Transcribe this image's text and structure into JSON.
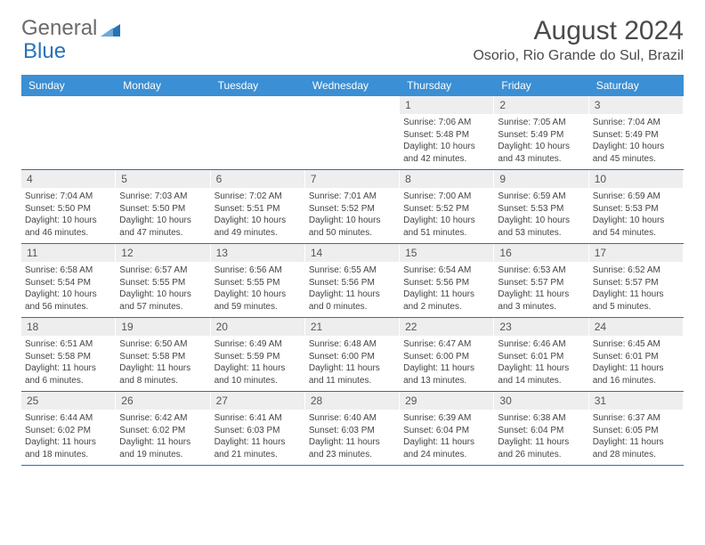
{
  "logo": {
    "part1": "General",
    "part2": "Blue"
  },
  "title": "August 2024",
  "location": "Osorio, Rio Grande do Sul, Brazil",
  "colors": {
    "header_bg": "#3b8fd4",
    "header_text": "#ffffff",
    "daynum_bg": "#eeeeee",
    "week_border": "#2873b8",
    "body_text": "#444444",
    "logo_gray": "#6b6b6b",
    "logo_blue": "#2873b8"
  },
  "day_labels": [
    "Sunday",
    "Monday",
    "Tuesday",
    "Wednesday",
    "Thursday",
    "Friday",
    "Saturday"
  ],
  "weeks": [
    [
      null,
      null,
      null,
      null,
      {
        "n": "1",
        "sunrise": "7:06 AM",
        "sunset": "5:48 PM",
        "daylight": "10 hours and 42 minutes."
      },
      {
        "n": "2",
        "sunrise": "7:05 AM",
        "sunset": "5:49 PM",
        "daylight": "10 hours and 43 minutes."
      },
      {
        "n": "3",
        "sunrise": "7:04 AM",
        "sunset": "5:49 PM",
        "daylight": "10 hours and 45 minutes."
      }
    ],
    [
      {
        "n": "4",
        "sunrise": "7:04 AM",
        "sunset": "5:50 PM",
        "daylight": "10 hours and 46 minutes."
      },
      {
        "n": "5",
        "sunrise": "7:03 AM",
        "sunset": "5:50 PM",
        "daylight": "10 hours and 47 minutes."
      },
      {
        "n": "6",
        "sunrise": "7:02 AM",
        "sunset": "5:51 PM",
        "daylight": "10 hours and 49 minutes."
      },
      {
        "n": "7",
        "sunrise": "7:01 AM",
        "sunset": "5:52 PM",
        "daylight": "10 hours and 50 minutes."
      },
      {
        "n": "8",
        "sunrise": "7:00 AM",
        "sunset": "5:52 PM",
        "daylight": "10 hours and 51 minutes."
      },
      {
        "n": "9",
        "sunrise": "6:59 AM",
        "sunset": "5:53 PM",
        "daylight": "10 hours and 53 minutes."
      },
      {
        "n": "10",
        "sunrise": "6:59 AM",
        "sunset": "5:53 PM",
        "daylight": "10 hours and 54 minutes."
      }
    ],
    [
      {
        "n": "11",
        "sunrise": "6:58 AM",
        "sunset": "5:54 PM",
        "daylight": "10 hours and 56 minutes."
      },
      {
        "n": "12",
        "sunrise": "6:57 AM",
        "sunset": "5:55 PM",
        "daylight": "10 hours and 57 minutes."
      },
      {
        "n": "13",
        "sunrise": "6:56 AM",
        "sunset": "5:55 PM",
        "daylight": "10 hours and 59 minutes."
      },
      {
        "n": "14",
        "sunrise": "6:55 AM",
        "sunset": "5:56 PM",
        "daylight": "11 hours and 0 minutes."
      },
      {
        "n": "15",
        "sunrise": "6:54 AM",
        "sunset": "5:56 PM",
        "daylight": "11 hours and 2 minutes."
      },
      {
        "n": "16",
        "sunrise": "6:53 AM",
        "sunset": "5:57 PM",
        "daylight": "11 hours and 3 minutes."
      },
      {
        "n": "17",
        "sunrise": "6:52 AM",
        "sunset": "5:57 PM",
        "daylight": "11 hours and 5 minutes."
      }
    ],
    [
      {
        "n": "18",
        "sunrise": "6:51 AM",
        "sunset": "5:58 PM",
        "daylight": "11 hours and 6 minutes."
      },
      {
        "n": "19",
        "sunrise": "6:50 AM",
        "sunset": "5:58 PM",
        "daylight": "11 hours and 8 minutes."
      },
      {
        "n": "20",
        "sunrise": "6:49 AM",
        "sunset": "5:59 PM",
        "daylight": "11 hours and 10 minutes."
      },
      {
        "n": "21",
        "sunrise": "6:48 AM",
        "sunset": "6:00 PM",
        "daylight": "11 hours and 11 minutes."
      },
      {
        "n": "22",
        "sunrise": "6:47 AM",
        "sunset": "6:00 PM",
        "daylight": "11 hours and 13 minutes."
      },
      {
        "n": "23",
        "sunrise": "6:46 AM",
        "sunset": "6:01 PM",
        "daylight": "11 hours and 14 minutes."
      },
      {
        "n": "24",
        "sunrise": "6:45 AM",
        "sunset": "6:01 PM",
        "daylight": "11 hours and 16 minutes."
      }
    ],
    [
      {
        "n": "25",
        "sunrise": "6:44 AM",
        "sunset": "6:02 PM",
        "daylight": "11 hours and 18 minutes."
      },
      {
        "n": "26",
        "sunrise": "6:42 AM",
        "sunset": "6:02 PM",
        "daylight": "11 hours and 19 minutes."
      },
      {
        "n": "27",
        "sunrise": "6:41 AM",
        "sunset": "6:03 PM",
        "daylight": "11 hours and 21 minutes."
      },
      {
        "n": "28",
        "sunrise": "6:40 AM",
        "sunset": "6:03 PM",
        "daylight": "11 hours and 23 minutes."
      },
      {
        "n": "29",
        "sunrise": "6:39 AM",
        "sunset": "6:04 PM",
        "daylight": "11 hours and 24 minutes."
      },
      {
        "n": "30",
        "sunrise": "6:38 AM",
        "sunset": "6:04 PM",
        "daylight": "11 hours and 26 minutes."
      },
      {
        "n": "31",
        "sunrise": "6:37 AM",
        "sunset": "6:05 PM",
        "daylight": "11 hours and 28 minutes."
      }
    ]
  ]
}
